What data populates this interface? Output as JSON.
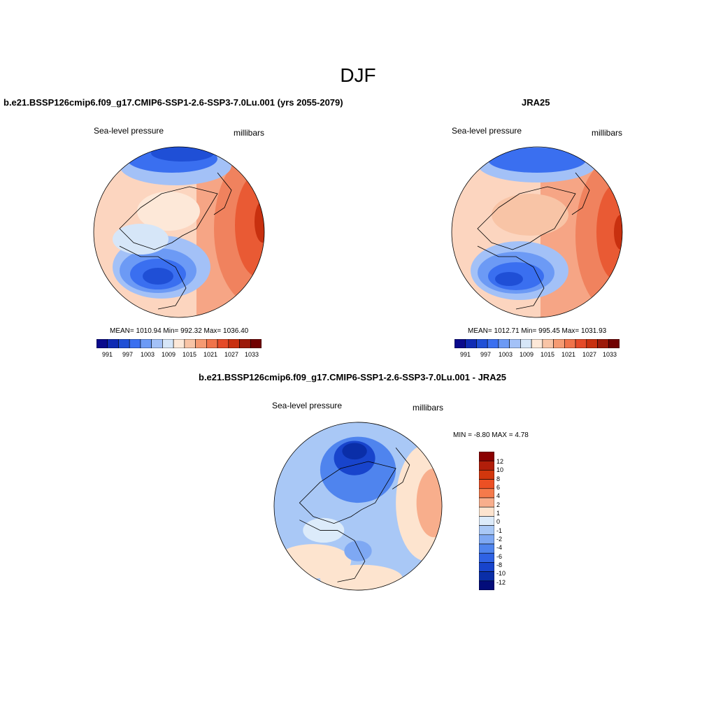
{
  "figure": {
    "title": "DJF"
  },
  "panels": [
    {
      "title": "b.e21.BSSP126cmip6.f09_g17.CMIP6-SSP1-2.6-SSP3-7.0Lu.001 (yrs 2055-2079)",
      "variable": "Sea-level pressure",
      "units": "millibars",
      "stats": "MEAN= 1010.94  Min= 992.32  Max= 1036.40",
      "colorbar_labels": [
        "991",
        "997",
        "1003",
        "1009",
        "1015",
        "1021",
        "1027",
        "1033"
      ]
    },
    {
      "title": "JRA25",
      "variable": "Sea-level pressure",
      "units": "millibars",
      "stats": "MEAN= 1012.71  Min= 995.45  Max= 1031.93",
      "colorbar_labels": [
        "991",
        "997",
        "1003",
        "1009",
        "1015",
        "1021",
        "1027",
        "1033"
      ]
    },
    {
      "title": "b.e21.BSSP126cmip6.f09_g17.CMIP6-SSP1-2.6-SSP3-7.0Lu.001 - JRA25",
      "variable": "Sea-level pressure",
      "units": "millibars",
      "stats": "MIN =  -8.80 MAX =   4.78",
      "colorbar_labels": [
        "12",
        "10",
        "8",
        "6",
        "4",
        "2",
        "1",
        "0",
        "-1",
        "-2",
        "-4",
        "-6",
        "-8",
        "-10",
        "-12"
      ]
    }
  ],
  "colors": {
    "abs_scale": [
      "#0a0a8c",
      "#0f2bb4",
      "#1f4fd6",
      "#3a6ff0",
      "#6c9af5",
      "#a3c1f7",
      "#d6e6f8",
      "#fde8d8",
      "#f8c4a6",
      "#f59a72",
      "#f0734a",
      "#e54a28",
      "#c8300f",
      "#9c1a0a",
      "#700000"
    ],
    "diff_scale": [
      "#8b0000",
      "#b11e0a",
      "#d2370d",
      "#ec5024",
      "#f57a4b",
      "#f8ae8c",
      "#fde4cf",
      "#dcebfa",
      "#a9c8f6",
      "#7ea8f3",
      "#4f84ee",
      "#2f62e4",
      "#1844cc",
      "#0a2ea8",
      "#030c7a"
    ]
  }
}
